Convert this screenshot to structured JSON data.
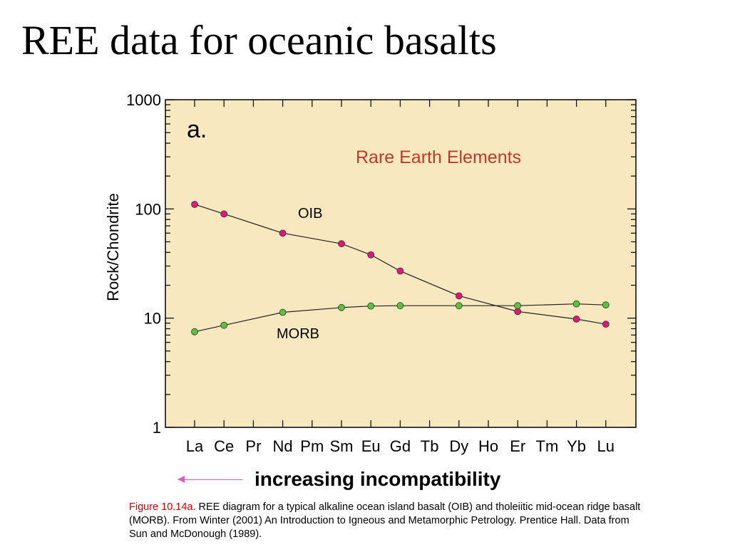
{
  "slide": {
    "title": "REE data for oceanic basalts",
    "arrow_label": "increasing incompatibility",
    "caption_label": "Figure 10.14a.",
    "caption_text": " REE diagram for a typical alkaline ocean island basalt (OIB) and tholeiitic mid-ocean ridge basalt (MORB). From Winter (2001) An Introduction to Igneous and Metamorphic Petrology. Prentice Hall. Data from Sun and McDonough (1989)."
  },
  "colors": {
    "plot_background": "#f8e8c0",
    "title_red": "#c0392b",
    "oib_marker": "#e0187a",
    "morb_marker": "#5bc23a",
    "arrow": "#e05cc8",
    "caption_label": "#cc0000"
  },
  "chart_data": {
    "type": "line",
    "panel_label": "a.",
    "title": "Rare Earth Elements",
    "xlabel": "",
    "ylabel": "Rock/Chondrite",
    "yscale": "log",
    "ylim": [
      1,
      1000
    ],
    "yticks": [
      1,
      10,
      100,
      1000
    ],
    "ytick_labels": [
      "1",
      "10",
      "100",
      "1000"
    ],
    "categories": [
      "La",
      "Ce",
      "Pr",
      "Nd",
      "Pm",
      "Sm",
      "Eu",
      "Gd",
      "Tb",
      "Dy",
      "Ho",
      "Er",
      "Tm",
      "Yb",
      "Lu"
    ],
    "grid": false,
    "series": [
      {
        "name": "OIB",
        "color": "#e0187a",
        "points": [
          {
            "x": "La",
            "y": 110
          },
          {
            "x": "Ce",
            "y": 90
          },
          {
            "x": "Nd",
            "y": 60
          },
          {
            "x": "Sm",
            "y": 48
          },
          {
            "x": "Eu",
            "y": 38
          },
          {
            "x": "Gd",
            "y": 27
          },
          {
            "x": "Dy",
            "y": 16
          },
          {
            "x": "Er",
            "y": 11.5
          },
          {
            "x": "Yb",
            "y": 9.8
          },
          {
            "x": "Lu",
            "y": 8.8
          }
        ]
      },
      {
        "name": "MORB",
        "color": "#5bc23a",
        "points": [
          {
            "x": "La",
            "y": 7.5
          },
          {
            "x": "Ce",
            "y": 8.6
          },
          {
            "x": "Nd",
            "y": 11.3
          },
          {
            "x": "Sm",
            "y": 12.5
          },
          {
            "x": "Eu",
            "y": 12.9
          },
          {
            "x": "Gd",
            "y": 13.0
          },
          {
            "x": "Dy",
            "y": 13.0
          },
          {
            "x": "Er",
            "y": 13.0
          },
          {
            "x": "Yb",
            "y": 13.5
          },
          {
            "x": "Lu",
            "y": 13.2
          }
        ]
      }
    ]
  }
}
